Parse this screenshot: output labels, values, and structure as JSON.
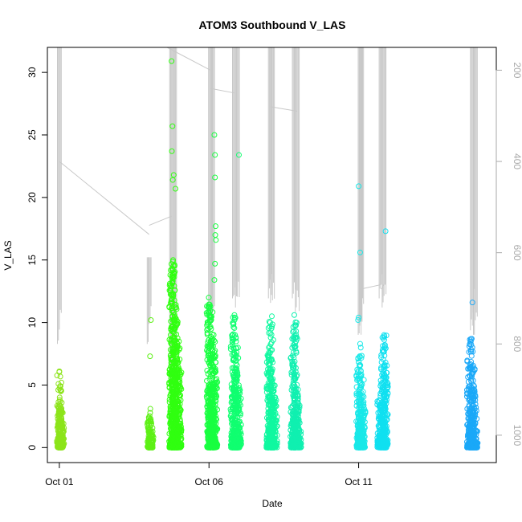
{
  "chart_data": {
    "type": "scatter",
    "title": "ATOM3 Southbound V_LAS",
    "xlabel": "Date",
    "ylabel": "V_LAS",
    "x_ticks": [
      {
        "day": 1,
        "label": "Oct 01"
      },
      {
        "day": 6,
        "label": "Oct 06"
      },
      {
        "day": 11,
        "label": "Oct 11"
      }
    ],
    "xlim_days": [
      0.6,
      15.6
    ],
    "ylim": [
      -1.2,
      32.0
    ],
    "y_ticks": [
      0,
      5,
      10,
      15,
      20,
      25,
      30
    ],
    "y2_ticks": [
      200,
      400,
      600,
      800,
      1000
    ],
    "y2lim_reversed": [
      1060,
      150
    ],
    "series": [
      {
        "color": "#8ce41a",
        "x": [
          1.0,
          1.02,
          1.04,
          1.06,
          1.08
        ],
        "y_max": [
          6.1,
          4.8,
          3.4,
          2.5,
          1.6
        ],
        "outliers": [
          [
            1.0,
            6.1
          ],
          [
            1.02,
            4.9
          ],
          [
            1.05,
            4.6
          ],
          [
            0.98,
            3.2
          ]
        ]
      },
      {
        "color": "#5ef016",
        "x": [
          4.02,
          4.05,
          4.07
        ],
        "y_max": [
          2.4,
          3.1,
          1.5
        ],
        "outliers": [
          [
            4.06,
            10.2
          ],
          [
            4.03,
            7.3
          ],
          [
            4.04,
            3.1
          ],
          [
            4.05,
            2.3
          ]
        ]
      },
      {
        "color": "#30ff10",
        "x": [
          4.75,
          4.8,
          4.85,
          4.9,
          4.95,
          5.0
        ],
        "y_max": [
          15.0,
          14.7,
          12.0,
          10.5,
          8.8,
          6.5
        ],
        "outliers": [
          [
            4.75,
            30.9
          ],
          [
            4.78,
            25.7
          ],
          [
            4.76,
            23.7
          ],
          [
            4.82,
            21.8
          ],
          [
            4.79,
            21.4
          ],
          [
            4.88,
            20.7
          ],
          [
            4.8,
            15.0
          ],
          [
            4.85,
            14.6
          ],
          [
            4.8,
            13.6
          ]
        ]
      },
      {
        "color": "#18ff40",
        "x": [
          6.0,
          6.05,
          6.1,
          6.15,
          6.2
        ],
        "y_max": [
          11.5,
          12.0,
          10.2,
          8.5,
          6.5
        ],
        "outliers": [
          [
            6.18,
            25.0
          ],
          [
            6.2,
            23.4
          ],
          [
            6.2,
            21.6
          ],
          [
            6.22,
            17.7
          ],
          [
            6.21,
            17.0
          ],
          [
            6.23,
            16.6
          ],
          [
            6.2,
            14.7
          ],
          [
            6.18,
            13.4
          ]
        ]
      },
      {
        "color": "#10ff70",
        "x": [
          6.8,
          6.85,
          6.9,
          6.95,
          7.0
        ],
        "y_max": [
          9.5,
          10.6,
          8.0,
          6.2,
          5.0
        ],
        "outliers": [
          [
            7.0,
            23.4
          ],
          [
            6.85,
            10.6
          ]
        ]
      },
      {
        "color": "#10f8a0",
        "x": [
          8.0,
          8.05,
          8.1,
          8.15,
          8.2
        ],
        "y_max": [
          8.5,
          10.5,
          7.0,
          5.2,
          4.0
        ],
        "outliers": [
          [
            8.1,
            10.5
          ],
          [
            8.15,
            8.6
          ],
          [
            8.1,
            7.0
          ]
        ]
      },
      {
        "color": "#10f0b0",
        "x": [
          8.8,
          8.85,
          8.9,
          8.95,
          9.0
        ],
        "y_max": [
          7.5,
          10.6,
          6.5,
          4.8,
          3.5
        ],
        "outliers": [
          [
            8.85,
            10.6
          ],
          [
            8.9,
            9.8
          ],
          [
            8.95,
            8.7
          ]
        ]
      },
      {
        "color": "#18e8e8",
        "x": [
          11.0,
          11.05,
          11.1,
          11.15
        ],
        "y_max": [
          7.5,
          8.3,
          6.0,
          4.5
        ],
        "outliers": [
          [
            11.0,
            20.9
          ],
          [
            11.05,
            15.6
          ],
          [
            11.0,
            10.4
          ],
          [
            10.98,
            10.2
          ],
          [
            11.05,
            8.3
          ]
        ]
      },
      {
        "color": "#10e0f0",
        "x": [
          11.7,
          11.75,
          11.8,
          11.85,
          11.9
        ],
        "y_max": [
          4.0,
          3.5,
          7.8,
          9.0,
          6.8
        ],
        "outliers": [
          [
            11.9,
            17.3
          ],
          [
            11.85,
            9.0
          ],
          [
            11.88,
            8.2
          ],
          [
            11.8,
            7.8
          ],
          [
            11.9,
            6.8
          ]
        ]
      },
      {
        "color": "#1aa8f8",
        "x": [
          14.7,
          14.75,
          14.8,
          14.85,
          14.9
        ],
        "y_max": [
          8.7,
          8.0,
          6.6,
          4.8,
          3.0
        ],
        "outliers": [
          [
            14.8,
            11.6
          ],
          [
            14.78,
            8.7
          ],
          [
            14.75,
            8.5
          ],
          [
            14.8,
            8.0
          ],
          [
            14.72,
            6.6
          ]
        ]
      }
    ],
    "altitude_series": {
      "color": "#c8c8c8",
      "bursts": [
        {
          "x": 1.0,
          "ymin": 150,
          "ymax": 800
        },
        {
          "x": 4.0,
          "ymin": 610,
          "ymax": 800
        },
        {
          "x": 4.75,
          "ymin": 150,
          "ymax": 900
        },
        {
          "x": 4.85,
          "ymin": 150,
          "ymax": 900
        },
        {
          "x": 6.05,
          "ymin": 150,
          "ymax": 780
        },
        {
          "x": 6.12,
          "ymin": 150,
          "ymax": 760
        },
        {
          "x": 6.85,
          "ymin": 150,
          "ymax": 700
        },
        {
          "x": 6.95,
          "ymin": 150,
          "ymax": 720
        },
        {
          "x": 8.05,
          "ymin": 150,
          "ymax": 700
        },
        {
          "x": 8.12,
          "ymin": 150,
          "ymax": 710
        },
        {
          "x": 8.85,
          "ymin": 150,
          "ymax": 700
        },
        {
          "x": 8.95,
          "ymin": 150,
          "ymax": 730
        },
        {
          "x": 11.05,
          "ymin": 150,
          "ymax": 780
        },
        {
          "x": 11.1,
          "ymin": 150,
          "ymax": 760
        },
        {
          "x": 11.75,
          "ymin": 150,
          "ymax": 700
        },
        {
          "x": 11.85,
          "ymin": 150,
          "ymax": 720
        },
        {
          "x": 14.8,
          "ymin": 150,
          "ymax": 770
        },
        {
          "x": 14.9,
          "ymin": 150,
          "ymax": 780
        }
      ],
      "transits": [
        [
          [
            1.0,
            400
          ],
          [
            4.0,
            560
          ]
        ],
        [
          [
            4.0,
            540
          ],
          [
            4.75,
            520
          ]
        ],
        [
          [
            4.6,
            150
          ],
          [
            6.05,
            200
          ]
        ],
        [
          [
            6.05,
            240
          ],
          [
            6.85,
            250
          ]
        ],
        [
          [
            8.05,
            280
          ],
          [
            8.95,
            290
          ]
        ],
        [
          [
            11.05,
            680
          ],
          [
            11.75,
            670
          ]
        ],
        [
          [
            11.75,
            680
          ],
          [
            11.85,
            670
          ]
        ]
      ]
    }
  }
}
